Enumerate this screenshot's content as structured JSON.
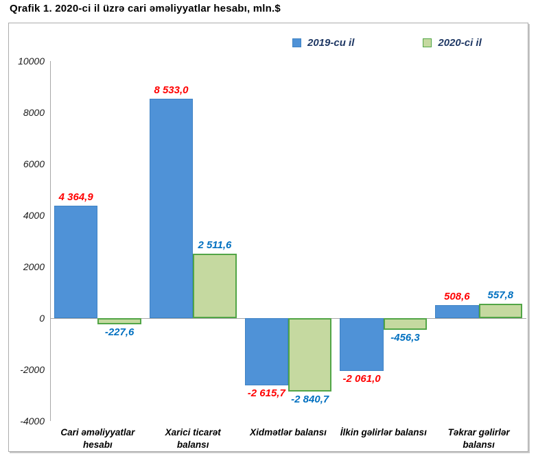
{
  "title": "Qrafik 1. 2020-ci il üzrə cari əməliyyatlar hesabı, mln.$",
  "chart_data": {
    "type": "bar",
    "title": "Qrafik 1. 2020-ci il üzrə cari əməliyyatlar hesabı, mln.$",
    "categories": [
      "Cari əməliyyatlar\nhesabı",
      "Xarici ticarət\nbalansı",
      "Xidmətlər balansı",
      "İlkin gəlirlər balansı",
      "Təkrar gəlirlər\nbalansı"
    ],
    "series": [
      {
        "name": "2019-cu il",
        "color": "#4f92d7",
        "border_color": "#3e82c4",
        "label_color": "#ff0000",
        "values": [
          4364.9,
          8533.0,
          -2615.7,
          -2061.0,
          508.6
        ],
        "labels": [
          "4 364,9",
          "8 533,0",
          "-2 615,7",
          "-2 061,0",
          "508,6"
        ]
      },
      {
        "name": "2020-ci il",
        "color": "#c5d9a0",
        "border_color": "#51a546",
        "label_color": "#0070c0",
        "values": [
          -227.6,
          2511.6,
          -2840.7,
          -456.3,
          557.8
        ],
        "labels": [
          "-227,6",
          "2 511,6",
          "-2 840,7",
          "-456,3",
          "557,8"
        ]
      }
    ],
    "ylim": [
      -4000,
      10000
    ],
    "yticks": [
      10000,
      8000,
      6000,
      4000,
      2000,
      0,
      -2000,
      -4000
    ],
    "grid": false,
    "legend_position": "top",
    "legend_text_color": "#1f3864",
    "axis_color": "#a6a6a6",
    "unit": "mln.$"
  }
}
